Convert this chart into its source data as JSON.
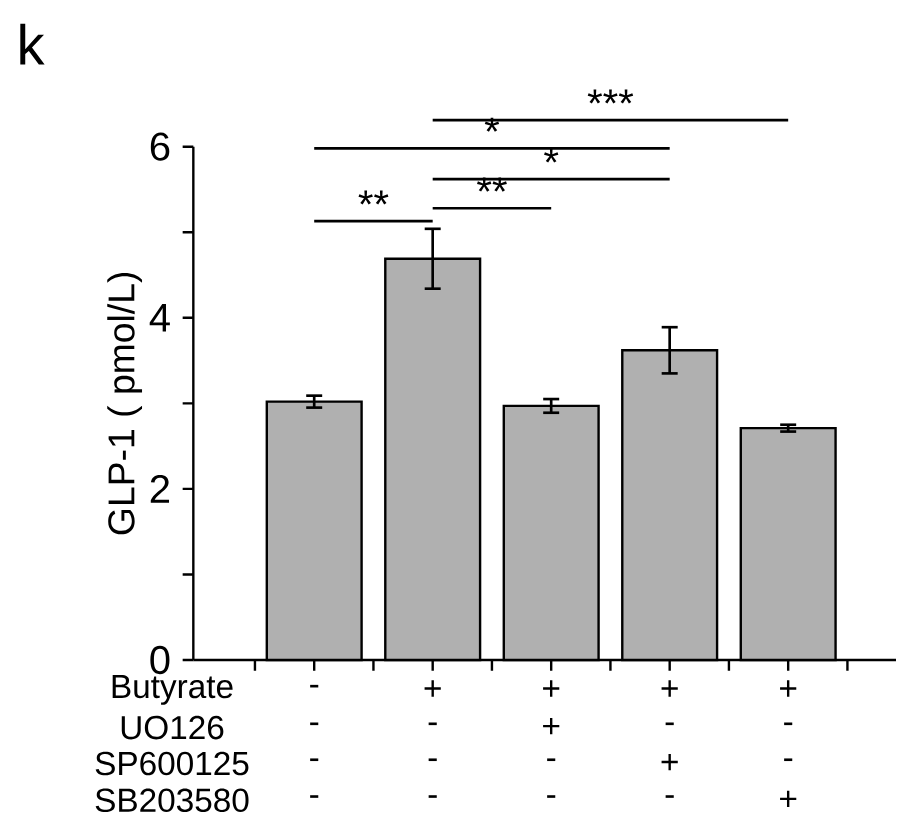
{
  "chart_data": {
    "type": "bar",
    "ylabel": "GLP-1 ( pmol/L)",
    "categories": [
      null,
      null,
      null,
      null,
      null
    ],
    "values": [
      3.02,
      4.69,
      2.97,
      3.62,
      2.71
    ],
    "errors": [
      0.07,
      0.35,
      0.08,
      0.27,
      0.04
    ],
    "color": "#b0b0b0",
    "ylim": [
      0,
      6
    ],
    "yticks": [
      0,
      {
        "value": 1,
        "label": null
      },
      2,
      {
        "value": 3,
        "label": null
      },
      4,
      {
        "value": 5,
        "label": null
      },
      6
    ],
    "annotations": [
      "k",
      "Butyrate",
      "-",
      "+",
      "+",
      "+",
      "+",
      "UO126",
      "-",
      "-",
      "+",
      "-",
      "-",
      "SP600125",
      "-",
      "-",
      "-",
      "+",
      "-",
      "SB203580",
      "-",
      "-",
      "-",
      "-",
      "+",
      "**",
      "**",
      "*",
      "*",
      "***"
    ]
  }
}
